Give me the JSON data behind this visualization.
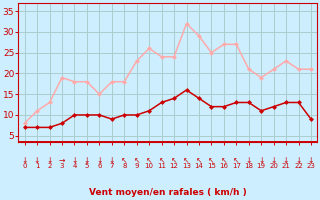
{
  "x": [
    0,
    1,
    2,
    3,
    4,
    5,
    6,
    7,
    8,
    9,
    10,
    11,
    12,
    13,
    14,
    15,
    16,
    17,
    18,
    19,
    20,
    21,
    22,
    23
  ],
  "wind_avg": [
    7,
    7,
    7,
    8,
    10,
    10,
    10,
    9,
    10,
    10,
    11,
    13,
    14,
    16,
    14,
    12,
    12,
    13,
    13,
    11,
    12,
    13,
    13,
    9
  ],
  "wind_gust": [
    8,
    11,
    13,
    19,
    18,
    18,
    15,
    18,
    18,
    23,
    26,
    24,
    24,
    32,
    29,
    25,
    27,
    27,
    21,
    19,
    21,
    23,
    21,
    21
  ],
  "bg_color": "#cceeff",
  "grid_color": "#aacccc",
  "line_avg_color": "#cc0000",
  "line_gust_color": "#ffaaaa",
  "xlabel": "Vent moyen/en rafales ( km/h )",
  "yticks": [
    5,
    10,
    15,
    20,
    25,
    30,
    35
  ],
  "ylim": [
    3.5,
    37
  ],
  "xlim": [
    -0.5,
    23.5
  ],
  "marker_size": 2.5,
  "line_width": 1.1,
  "wind_directions": [
    "↓",
    "↓",
    "↓",
    "→",
    "↓",
    "↓",
    "↓",
    "↓",
    "↖",
    "↖",
    "↖",
    "↖",
    "↖",
    "↖",
    "↖",
    "↖",
    "↖",
    "↖",
    "↓",
    "↓",
    "↓",
    "↓",
    "↓",
    "↓"
  ]
}
